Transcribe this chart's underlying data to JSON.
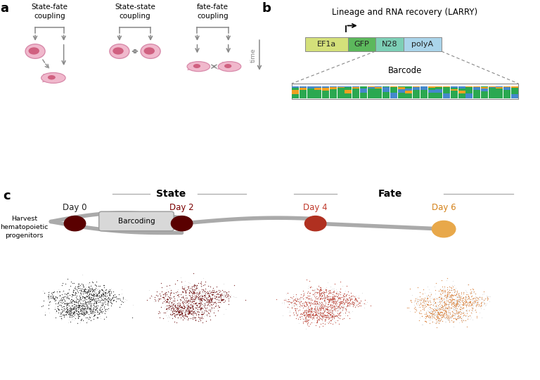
{
  "panel_a_title": "a",
  "panel_b_title": "b",
  "panel_c_title": "c",
  "coupling_labels": [
    "State-fate\ncoupling",
    "State-state\ncoupling",
    "fate-fate\ncoupling"
  ],
  "larry_title": "Lineage and RNA recovery (LARRY)",
  "larry_boxes": [
    {
      "label": "EF1a",
      "color": "#d4e07a"
    },
    {
      "label": "GFP",
      "color": "#5cb85c"
    },
    {
      "label": "N28",
      "color": "#7dcfb6"
    },
    {
      "label": "polyA",
      "color": "#aad4ea"
    }
  ],
  "barcode_label": "Barcode",
  "day_labels": [
    "Day 0",
    "Day 2",
    "Day 4",
    "Day 6"
  ],
  "day_colors": [
    "#222222",
    "#7a0000",
    "#c0392b",
    "#d4821a"
  ],
  "dot_colors": [
    "#5a0000",
    "#5a0000",
    "#b03020",
    "#e8a84a"
  ],
  "state_label": "State",
  "fate_label": "Fate",
  "harvest_text": "Harvest\nhematopoietic\nprogenitors",
  "barcoding_label": "Barcoding",
  "cell_colors_scatter": [
    "#1a1a1a",
    "#6b0000",
    "#c0392b",
    "#e07b2a"
  ],
  "gray_color": "#999999",
  "arrow_color": "#888888",
  "cell_outline_color": "#d88aaa",
  "cell_fill_color": "#f0b8cc",
  "nucleus_color": "#d06080",
  "background_color": "#ffffff",
  "timeline_color": "#aaaaaa",
  "barcoding_box_color": "#d8d8d8",
  "state_fate_line_color": "#aaaaaa"
}
